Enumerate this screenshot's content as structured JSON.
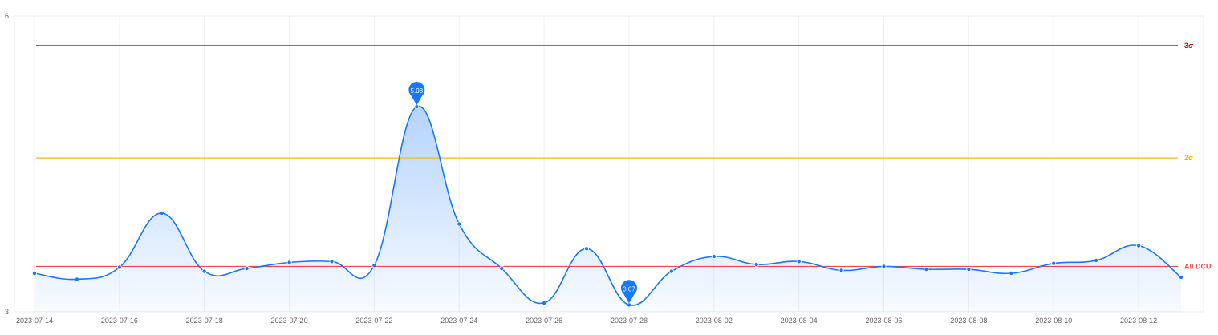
{
  "chart_data": {
    "type": "area",
    "x": [
      "2023-07-14",
      "2023-07-15",
      "2023-07-16",
      "2023-07-17",
      "2023-07-18",
      "2023-07-19",
      "2023-07-20",
      "2023-07-21",
      "2023-07-22",
      "2023-07-23",
      "2023-07-24",
      "2023-07-25",
      "2023-07-26",
      "2023-07-27",
      "2023-07-28",
      "2023-07-29",
      "2023-08-02",
      "2023-08-03",
      "2023-08-04",
      "2023-08-05",
      "2023-08-06",
      "2023-08-07",
      "2023-08-08",
      "2023-08-09",
      "2023-08-10",
      "2023-08-11",
      "2023-08-12",
      "2023-08-13"
    ],
    "x_tick_labels": [
      "2023-07-14",
      "2023-07-16",
      "2023-07-18",
      "2023-07-20",
      "2023-07-22",
      "2023-07-24",
      "2023-07-26",
      "2023-07-28",
      "2023-08-02",
      "2023-08-04",
      "2023-08-06",
      "2023-08-08",
      "2023-08-10",
      "2023-08-12"
    ],
    "series": [
      {
        "values": [
          3.39,
          3.33,
          3.45,
          4.0,
          3.41,
          3.44,
          3.5,
          3.51,
          3.47,
          5.08,
          3.89,
          3.44,
          3.09,
          3.64,
          3.07,
          3.41,
          3.56,
          3.48,
          3.51,
          3.42,
          3.46,
          3.43,
          3.43,
          3.39,
          3.49,
          3.52,
          3.67,
          3.35
        ],
        "color": "#1677ff"
      }
    ],
    "y_tick_labels": [
      "6",
      "3"
    ],
    "ylim": [
      3,
      6
    ],
    "reference_lines": [
      {
        "label": "3σ",
        "value": 5.7,
        "color": "#e8000b"
      },
      {
        "label": "2σ",
        "value": 4.56,
        "color": "#fab700"
      },
      {
        "label": "All DCU",
        "value": 3.46,
        "color": "#f04848"
      }
    ],
    "markers": [
      {
        "label": "5.08",
        "index": 9
      },
      {
        "label": "3.07",
        "index": 14
      }
    ],
    "grid": true,
    "legend": "none"
  }
}
